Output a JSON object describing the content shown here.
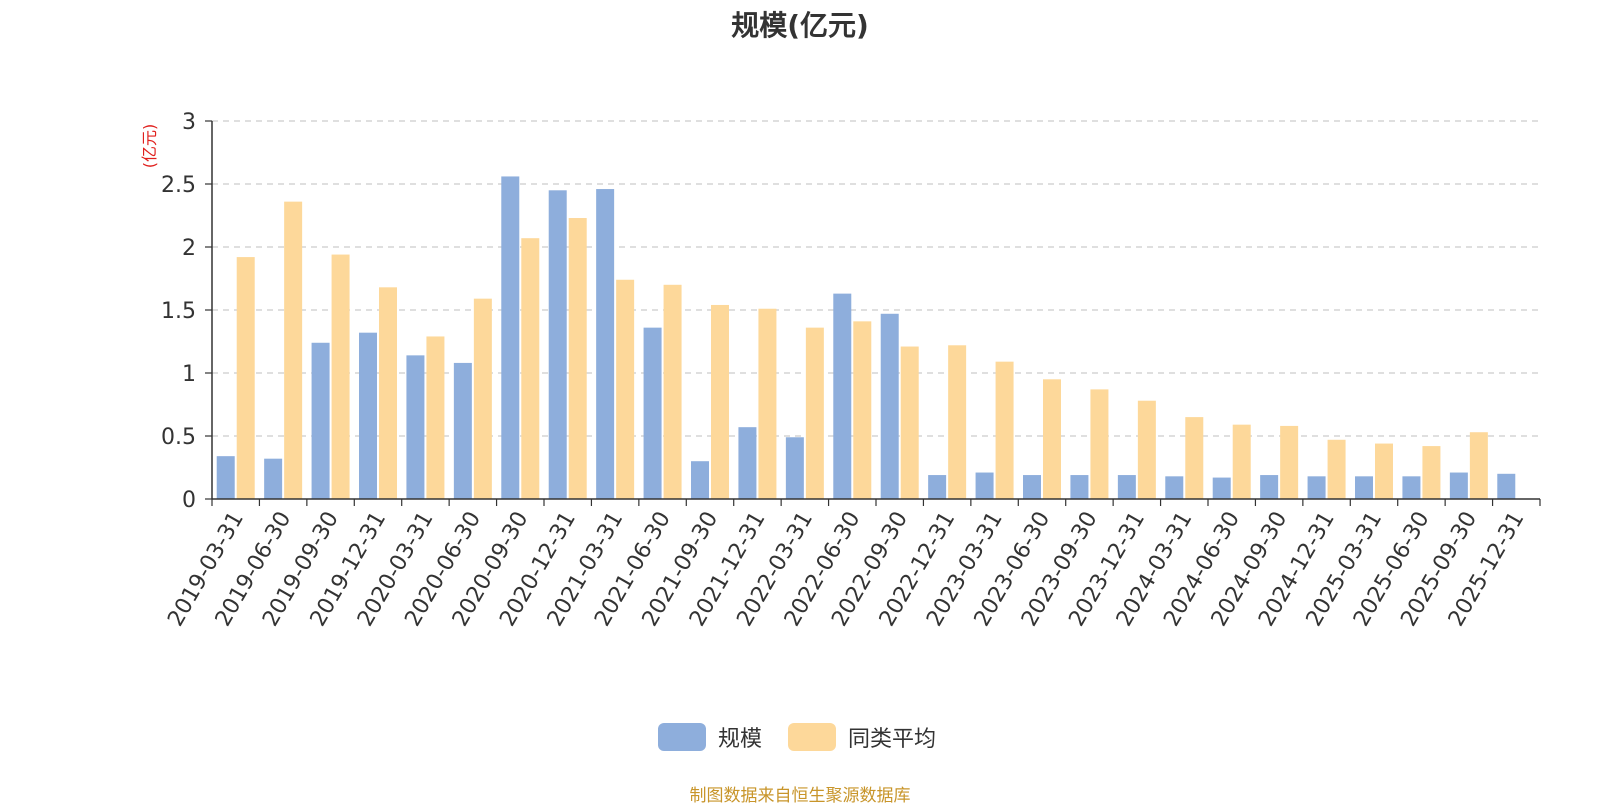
{
  "title": "规模(亿元)",
  "source_note": "制图数据来自恒生聚源数据库",
  "colors": {
    "scale": "#8eaedc",
    "average": "#fdd89a",
    "unit_label": "#e0201d",
    "axis": "#333333",
    "grid": "#cccccc",
    "source": "#c8952a"
  },
  "chart_data": {
    "type": "bar",
    "title": "规模(亿元)",
    "ylabel": "(亿元)",
    "xlabel": "",
    "ylim": [
      0,
      3
    ],
    "yticks": [
      "0",
      "0.5",
      "1",
      "1.5",
      "2",
      "2.5",
      "3"
    ],
    "grid": true,
    "legend_position": "bottom",
    "categories": [
      "2019-03-31",
      "2019-06-30",
      "2019-09-30",
      "2019-12-31",
      "2020-03-31",
      "2020-06-30",
      "2020-09-30",
      "2020-12-31",
      "2021-03-31",
      "2021-06-30",
      "2021-09-30",
      "2021-12-31",
      "2022-03-31",
      "2022-06-30",
      "2022-09-30",
      "2022-12-31",
      "2023-03-31",
      "2023-06-30",
      "2023-09-30",
      "2023-12-31",
      "2024-03-31",
      "2024-06-30",
      "2024-09-30",
      "2024-12-31",
      "2025-03-31",
      "2025-06-30",
      "2025-09-30",
      "2025-12-31"
    ],
    "series": [
      {
        "name": "规模",
        "color": "#8eaedc",
        "values": [
          0.34,
          0.32,
          1.24,
          1.32,
          1.14,
          1.08,
          2.56,
          2.45,
          2.46,
          1.36,
          0.3,
          0.57,
          0.49,
          1.63,
          1.47,
          0.19,
          0.21,
          0.19,
          0.19,
          0.19,
          0.18,
          0.17,
          0.19,
          0.18,
          0.18,
          0.18,
          0.21,
          0.2
        ]
      },
      {
        "name": "同类平均",
        "color": "#fdd89a",
        "values": [
          1.92,
          2.36,
          1.94,
          1.68,
          1.29,
          1.59,
          2.07,
          2.23,
          1.74,
          1.7,
          1.54,
          1.51,
          1.36,
          1.41,
          1.21,
          1.22,
          1.09,
          0.95,
          0.87,
          0.78,
          0.65,
          0.59,
          0.58,
          0.47,
          0.44,
          0.42,
          0.53,
          null
        ]
      }
    ]
  },
  "legend": {
    "items": [
      {
        "label": "规模"
      },
      {
        "label": "同类平均"
      }
    ]
  }
}
